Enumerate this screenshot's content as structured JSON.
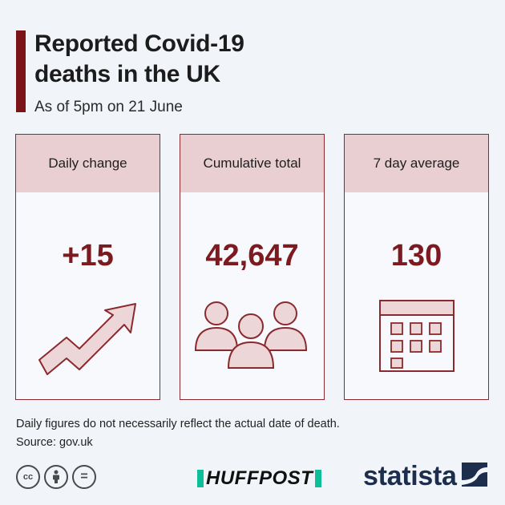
{
  "header": {
    "title_line1": "Reported Covid-19",
    "title_line2": "deaths in the UK",
    "subtitle": "As of 5pm on 21 June"
  },
  "cards": [
    {
      "label": "Daily change",
      "value": "+15",
      "icon": "trend-up-arrow-icon"
    },
    {
      "label": "Cumulative total",
      "value": "42,647",
      "icon": "people-group-icon"
    },
    {
      "label": "7 day average",
      "value": "130",
      "icon": "calendar-icon"
    }
  ],
  "footer": {
    "note": "Daily figures do not necessarily reflect the actual date of death.",
    "source": "Source: gov.uk",
    "license_icons": [
      "cc-icon",
      "attribution-icon",
      "no-derivatives-icon"
    ],
    "cc_label": "cc",
    "nd_label": "=",
    "huffpost": "HUFFPOST",
    "statista": "statista"
  },
  "colors": {
    "accent": "#7a1419",
    "value": "#7d1a20",
    "card_header": "#e9cfd1",
    "icon_fill": "#ecd6d8",
    "huffpost_green": "#0dbe98",
    "statista_navy": "#1d2e4d"
  }
}
